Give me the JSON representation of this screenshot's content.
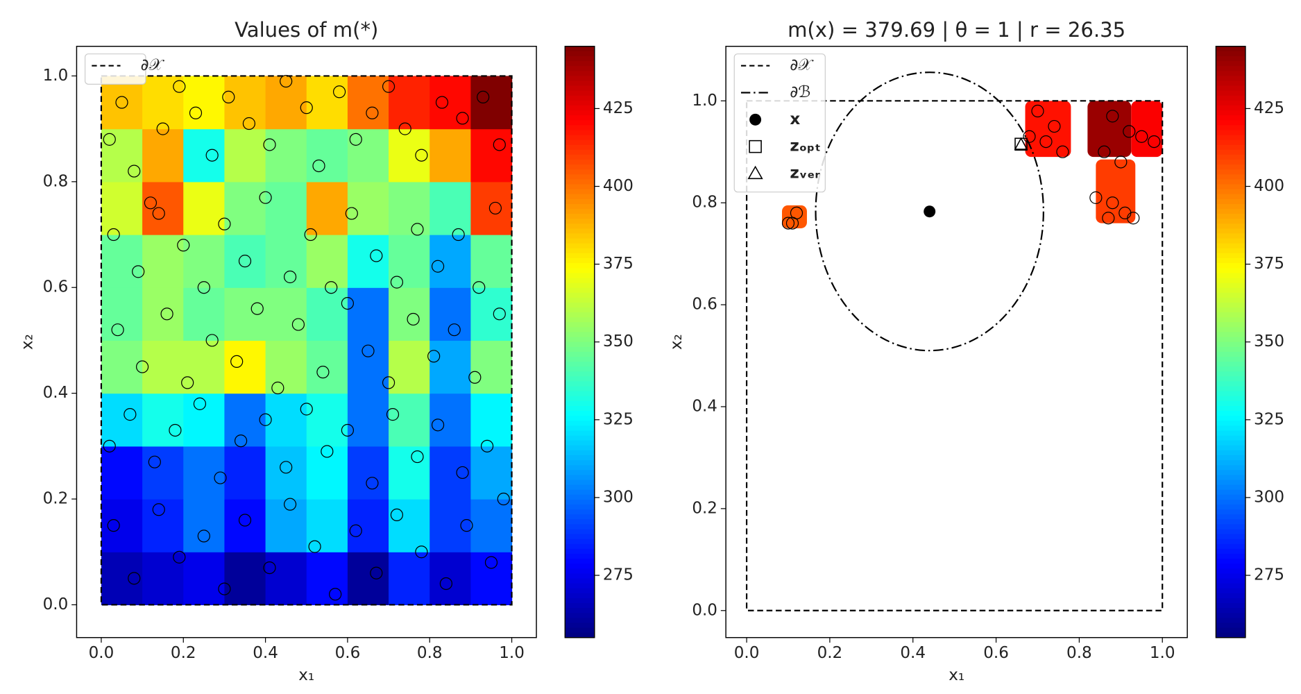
{
  "chart_data": [
    {
      "type": "heatmap",
      "title": "Values of m(*)",
      "xlabel": "x₁",
      "ylabel": "x₂",
      "xlim": [
        -0.06,
        1.06
      ],
      "ylim": [
        -0.062,
        1.056
      ],
      "xticks": [
        {
          "value": 0,
          "label": "0.0"
        },
        0.2,
        0.4,
        0.6,
        0.8,
        {
          "value": 1,
          "label": "1.0"
        }
      ],
      "yticks": [
        {
          "value": 0,
          "label": "0.0"
        },
        0.2,
        0.4,
        0.6,
        0.8,
        {
          "value": 1,
          "label": "1.0"
        }
      ],
      "colormap": "jet",
      "clim": [
        255,
        445
      ],
      "cticks": [
        275,
        300,
        325,
        350,
        375,
        400,
        425
      ],
      "heatmap": {
        "x_edges": [
          0,
          0.1,
          0.2,
          0.3,
          0.4,
          0.5,
          0.6,
          0.7,
          0.8,
          0.9,
          1
        ],
        "y_edges": [
          0,
          0.1,
          0.2,
          0.3,
          0.4,
          0.5,
          0.6,
          0.7,
          0.8,
          0.9,
          1
        ],
        "values": [
          [
            265,
            270,
            275,
            260,
            270,
            280,
            260,
            285,
            270,
            280
          ],
          [
            275,
            285,
            300,
            280,
            310,
            320,
            285,
            320,
            290,
            300
          ],
          [
            280,
            290,
            300,
            285,
            315,
            325,
            290,
            330,
            290,
            310
          ],
          [
            320,
            330,
            325,
            300,
            320,
            330,
            300,
            340,
            300,
            325
          ],
          [
            350,
            360,
            360,
            375,
            355,
            345,
            300,
            360,
            310,
            350
          ],
          [
            345,
            355,
            345,
            350,
            350,
            340,
            300,
            350,
            300,
            335
          ],
          [
            345,
            355,
            350,
            340,
            345,
            355,
            330,
            345,
            310,
            345
          ],
          [
            365,
            405,
            370,
            350,
            345,
            390,
            355,
            350,
            340,
            410
          ],
          [
            360,
            390,
            330,
            360,
            350,
            345,
            350,
            370,
            390,
            420
          ],
          [
            385,
            380,
            375,
            385,
            390,
            380,
            400,
            415,
            420,
            445
          ]
        ]
      },
      "points": {
        "x": [
          0.02,
          0.05,
          0.08,
          0.12,
          0.15,
          0.19,
          0.23,
          0.27,
          0.31,
          0.36,
          0.41,
          0.45,
          0.5,
          0.53,
          0.58,
          0.62,
          0.66,
          0.7,
          0.74,
          0.78,
          0.83,
          0.88,
          0.93,
          0.97,
          0.03,
          0.09,
          0.14,
          0.2,
          0.25,
          0.3,
          0.35,
          0.4,
          0.46,
          0.51,
          0.56,
          0.61,
          0.67,
          0.72,
          0.77,
          0.82,
          0.87,
          0.92,
          0.96,
          0.04,
          0.1,
          0.16,
          0.21,
          0.27,
          0.33,
          0.38,
          0.43,
          0.48,
          0.54,
          0.6,
          0.65,
          0.7,
          0.76,
          0.81,
          0.86,
          0.91,
          0.97,
          0.02,
          0.07,
          0.13,
          0.18,
          0.24,
          0.29,
          0.34,
          0.4,
          0.45,
          0.5,
          0.55,
          0.6,
          0.66,
          0.71,
          0.77,
          0.82,
          0.88,
          0.94,
          0.03,
          0.08,
          0.14,
          0.19,
          0.25,
          0.3,
          0.35,
          0.41,
          0.46,
          0.52,
          0.57,
          0.62,
          0.67,
          0.72,
          0.78,
          0.84,
          0.89,
          0.95,
          0.98
        ],
        "y": [
          0.88,
          0.95,
          0.82,
          0.76,
          0.9,
          0.98,
          0.93,
          0.85,
          0.96,
          0.91,
          0.87,
          0.99,
          0.94,
          0.83,
          0.97,
          0.88,
          0.93,
          0.98,
          0.9,
          0.85,
          0.95,
          0.92,
          0.96,
          0.87,
          0.7,
          0.63,
          0.74,
          0.68,
          0.6,
          0.72,
          0.65,
          0.77,
          0.62,
          0.7,
          0.6,
          0.74,
          0.66,
          0.61,
          0.71,
          0.64,
          0.7,
          0.6,
          0.75,
          0.52,
          0.45,
          0.55,
          0.42,
          0.5,
          0.46,
          0.56,
          0.41,
          0.53,
          0.44,
          0.57,
          0.48,
          0.42,
          0.54,
          0.47,
          0.52,
          0.43,
          0.55,
          0.3,
          0.36,
          0.27,
          0.33,
          0.38,
          0.24,
          0.31,
          0.35,
          0.26,
          0.37,
          0.29,
          0.33,
          0.23,
          0.36,
          0.28,
          0.34,
          0.25,
          0.3,
          0.15,
          0.05,
          0.18,
          0.09,
          0.13,
          0.03,
          0.16,
          0.07,
          0.19,
          0.11,
          0.02,
          0.14,
          0.06,
          0.17,
          0.1,
          0.04,
          0.15,
          0.08,
          0.2
        ]
      },
      "boundary": {
        "x": [
          0,
          1
        ],
        "y": [
          0,
          1
        ]
      },
      "legend": {
        "position": "upper left",
        "entries": [
          {
            "name": "∂𝒳",
            "marker": "dashed"
          }
        ]
      }
    },
    {
      "type": "patches",
      "title": "m(x) = 379.69 | θ = 1 | r = 26.35",
      "xlabel": "x₁",
      "ylabel": "x₂",
      "xlim": [
        -0.05,
        1.06
      ],
      "ylim": [
        -0.053,
        1.107
      ],
      "xticks": [
        {
          "value": 0,
          "label": "0.0"
        },
        0.2,
        0.4,
        0.6,
        0.8,
        {
          "value": 1,
          "label": "1.0"
        }
      ],
      "yticks": [
        {
          "value": 0,
          "label": "0.0"
        },
        0.2,
        0.4,
        0.6,
        0.8,
        {
          "value": 1,
          "label": "1.0"
        }
      ],
      "colormap": "jet",
      "clim": [
        255,
        445
      ],
      "cticks": [
        275,
        300,
        325,
        350,
        375,
        400,
        425
      ],
      "patches": [
        {
          "x": [
            0.085,
            0.145
          ],
          "y": [
            0.75,
            0.795
          ],
          "value": 405
        },
        {
          "x": [
            0.67,
            0.78
          ],
          "y": [
            0.89,
            1.0
          ],
          "value": 418
        },
        {
          "x": [
            0.82,
            0.925
          ],
          "y": [
            0.89,
            1.0
          ],
          "value": 440
        },
        {
          "x": [
            0.925,
            1.0
          ],
          "y": [
            0.89,
            1.0
          ],
          "value": 422
        },
        {
          "x": [
            0.84,
            0.935
          ],
          "y": [
            0.76,
            0.885
          ],
          "value": 410
        }
      ],
      "points": {
        "x": [
          0.1,
          0.12,
          0.11,
          0.7,
          0.74,
          0.72,
          0.76,
          0.68,
          0.88,
          0.92,
          0.86,
          0.95,
          0.98,
          0.9,
          0.84,
          0.88,
          0.91,
          0.87,
          0.93
        ],
        "y": [
          0.76,
          0.78,
          0.76,
          0.98,
          0.95,
          0.92,
          0.9,
          0.93,
          0.97,
          0.94,
          0.9,
          0.93,
          0.92,
          0.88,
          0.81,
          0.8,
          0.78,
          0.77,
          0.77
        ]
      },
      "boundary": {
        "x": [
          0,
          1
        ],
        "y": [
          0,
          1
        ]
      },
      "ellipse": {
        "cx": 0.44,
        "cy": 0.783,
        "rx": 0.274,
        "ry": 0.273
      },
      "x_point": [
        0.44,
        0.783
      ],
      "z_opt": [
        0.66,
        0.915
      ],
      "z_ver": [
        0.66,
        0.915
      ],
      "legend": {
        "position": "upper left",
        "entries": [
          {
            "name": "∂𝒳",
            "marker": "dashed"
          },
          {
            "name": "∂ℬ",
            "marker": "dashdot"
          },
          {
            "name": "x",
            "marker": "dot"
          },
          {
            "name": "zₒₚₜ",
            "marker": "square"
          },
          {
            "name": "zᵥₑᵣ",
            "marker": "triangle"
          }
        ]
      }
    }
  ]
}
